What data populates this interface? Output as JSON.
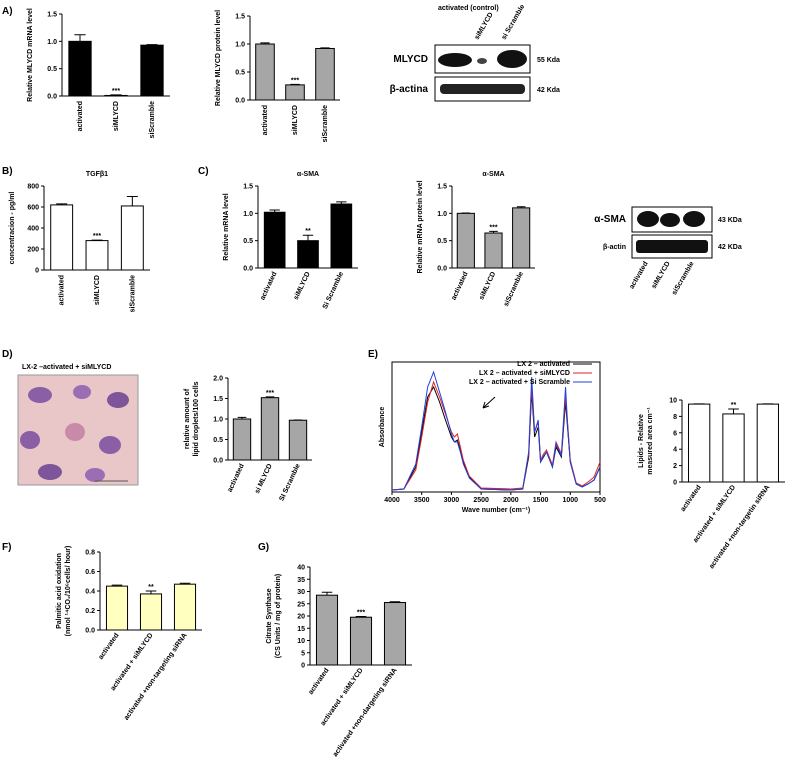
{
  "panel_labels": [
    "A)",
    "B)",
    "C)",
    "D)",
    "E)",
    "F)",
    "G)"
  ],
  "chart_data": [
    {
      "type": "bar",
      "ylabel": [
        "Relative MLYCD mRNA level"
      ],
      "categories": [
        "activated",
        "siMLYCD",
        "siScramble"
      ],
      "series": [
        {
          "color": "#000000",
          "values": [
            1.0,
            0.01,
            0.93
          ],
          "errors": [
            0.12,
            0.01,
            0.01
          ]
        }
      ],
      "significance": [
        null,
        "***",
        null
      ],
      "ylim": [
        0,
        1.5
      ],
      "yticks": [
        {
          "value": 0,
          "label": "0.0"
        },
        0.5,
        {
          "value": 1,
          "label": "1.0"
        },
        1.5
      ]
    },
    {
      "type": "bar",
      "ylabel": [
        "Relative MLYCD protein level"
      ],
      "categories": [
        "activated",
        "siMLYCD",
        "siScramble"
      ],
      "series": [
        {
          "color": "#a6a6a6",
          "values": [
            1.0,
            0.27,
            0.92
          ],
          "errors": [
            0.02,
            0.01,
            0.01
          ]
        }
      ],
      "significance": [
        null,
        "***",
        null
      ],
      "ylim": [
        0,
        1.5
      ],
      "yticks": [
        {
          "value": 0,
          "label": "0.0"
        },
        0.5,
        {
          "value": 1,
          "label": "1.0"
        },
        1.5
      ]
    },
    {
      "type": "bar",
      "title": "TGFβ1",
      "ylabel": [
        "concentracion - pg/ml"
      ],
      "categories": [
        "activated",
        "siMLYCD",
        "siScramble"
      ],
      "series": [
        {
          "color": "#ffffff",
          "values": [
            620,
            280,
            610
          ],
          "errors": [
            10,
            5,
            90
          ]
        }
      ],
      "significance": [
        null,
        "***",
        null
      ],
      "ylim": [
        0,
        800
      ],
      "yticks": [
        0,
        200,
        400,
        600,
        800
      ]
    },
    {
      "type": "bar",
      "title": "α-SMA",
      "ylabel": [
        "Relative mRNA level"
      ],
      "categories": [
        "activated",
        "siMLYCD",
        "Si Scramble"
      ],
      "series": [
        {
          "color": "#000000",
          "values": [
            1.02,
            0.5,
            1.17
          ],
          "errors": [
            0.04,
            0.1,
            0.04
          ]
        }
      ],
      "significance": [
        null,
        "**",
        null
      ],
      "ylim": [
        0,
        1.5
      ],
      "yticks": [
        {
          "value": 0,
          "label": "0.0"
        },
        0.5,
        {
          "value": 1,
          "label": "1.0"
        },
        1.5
      ]
    },
    {
      "type": "bar",
      "title": "α-SMA",
      "ylabel": [
        "Relative mRNA protein level"
      ],
      "categories": [
        "activated",
        "siMLYCD",
        "siScramble"
      ],
      "series": [
        {
          "color": "#a6a6a6",
          "values": [
            1.0,
            0.64,
            1.1
          ],
          "errors": [
            0.005,
            0.03,
            0.02
          ]
        }
      ],
      "significance": [
        null,
        "***",
        null
      ],
      "ylim": [
        0,
        1.5
      ],
      "yticks": [
        {
          "value": 0,
          "label": "0.0"
        },
        0.5,
        {
          "value": 1,
          "label": "1.0"
        },
        1.5
      ]
    },
    {
      "type": "bar",
      "ylabel": [
        "relative amount of",
        "lipid droplets/100 cells"
      ],
      "categories": [
        "activated",
        "si MLYCD",
        "SI Scramble"
      ],
      "series": [
        {
          "color": "#a6a6a6",
          "values": [
            1.0,
            1.52,
            0.97
          ],
          "errors": [
            0.04,
            0.02,
            0.005
          ]
        }
      ],
      "significance": [
        null,
        "***",
        null
      ],
      "ylim": [
        0,
        2
      ],
      "yticks": [
        {
          "value": 0,
          "label": "0.0"
        },
        0.5,
        {
          "value": 1,
          "label": "1.0"
        },
        1.5,
        {
          "value": 2,
          "label": "2.0"
        }
      ]
    },
    {
      "type": "line",
      "ylabel": [
        "Absorbance"
      ],
      "xlabel": "Wave number (cm⁻¹)",
      "x": [
        4000,
        3800,
        3600,
        3500,
        3400,
        3300,
        3200,
        3100,
        3000,
        2950,
        2900,
        2850,
        2800,
        2700,
        2500,
        2000,
        1800,
        1700,
        1650,
        1600,
        1540,
        1500,
        1450,
        1400,
        1300,
        1240,
        1150,
        1080,
        1040,
        1000,
        900,
        800,
        700,
        600,
        500
      ],
      "series": [
        {
          "name": "LX 2 – activated",
          "color": "#000000",
          "values": [
            0.02,
            0.03,
            0.25,
            0.6,
            0.95,
            1.05,
            0.9,
            0.72,
            0.55,
            0.5,
            0.52,
            0.42,
            0.3,
            0.15,
            0.03,
            0.02,
            0.03,
            0.35,
            1.0,
            0.55,
            0.65,
            0.3,
            0.35,
            0.4,
            0.25,
            0.45,
            0.35,
            0.9,
            0.6,
            0.3,
            0.08,
            0.05,
            0.08,
            0.12,
            0.25
          ]
        },
        {
          "name": "LX 2 – activated + siMLYCD",
          "color": "#e02020",
          "values": [
            0.02,
            0.03,
            0.22,
            0.55,
            0.9,
            1.1,
            0.95,
            0.78,
            0.6,
            0.55,
            0.58,
            0.45,
            0.32,
            0.16,
            0.04,
            0.03,
            0.04,
            0.38,
            1.05,
            0.6,
            0.7,
            0.32,
            0.38,
            0.42,
            0.27,
            0.5,
            0.38,
            0.95,
            0.65,
            0.32,
            0.09,
            0.06,
            0.1,
            0.15,
            0.3
          ]
        },
        {
          "name": "LX 2 – activated + Si Scramble",
          "color": "#2040e0",
          "values": [
            0.02,
            0.03,
            0.28,
            0.65,
            1.05,
            1.2,
            1.0,
            0.8,
            0.58,
            0.5,
            0.5,
            0.4,
            0.28,
            0.14,
            0.03,
            0.02,
            0.03,
            0.4,
            1.15,
            0.6,
            0.72,
            0.3,
            0.36,
            0.4,
            0.25,
            0.48,
            0.36,
            1.05,
            0.62,
            0.3,
            0.08,
            0.05,
            0.08,
            0.12,
            0.25
          ]
        }
      ],
      "xlim": [
        4000,
        500
      ],
      "xticks": [
        4000,
        3500,
        3000,
        2500,
        2000,
        1500,
        1000,
        500
      ],
      "ylim": [
        0,
        1.3
      ],
      "legend": "top-right"
    },
    {
      "type": "bar",
      "ylabel": [
        "Lipids - Relative",
        "measured area cm⁻¹"
      ],
      "categories": [
        "activated",
        "activated + siMLYCD",
        "activated +non-targetin siRNA"
      ],
      "series": [
        {
          "color": "#ffffff",
          "values": [
            9.5,
            8.3,
            9.5
          ],
          "errors": [
            0.02,
            0.6,
            0.02
          ]
        }
      ],
      "significance": [
        null,
        "**",
        null
      ],
      "ylim": [
        0,
        10
      ],
      "yticks": [
        0,
        2,
        4,
        6,
        8,
        10
      ]
    },
    {
      "type": "bar",
      "ylabel": [
        "Palmitic acid oxidation",
        "(nmol ¹⁴CO₂/10⁶cells/ hour)"
      ],
      "categories": [
        "activated",
        "activated + siMLYCD",
        "activated +non-targeting siRNA"
      ],
      "series": [
        {
          "color": "#ffffc0",
          "values": [
            0.45,
            0.37,
            0.47
          ],
          "errors": [
            0.01,
            0.03,
            0.01
          ]
        }
      ],
      "significance": [
        null,
        "**",
        null
      ],
      "ylim": [
        0,
        0.8
      ],
      "yticks": [
        {
          "value": 0,
          "label": "0.0"
        },
        0.2,
        0.4,
        0.6,
        0.8
      ]
    },
    {
      "type": "bar",
      "ylabel": [
        "Citrate Synthase",
        "(CS Units / mg of protein)"
      ],
      "categories": [
        "activated",
        "activated + siMLYCD",
        "activated +non-dargeting siRNA"
      ],
      "series": [
        {
          "color": "#a6a6a6",
          "values": [
            28.5,
            19.5,
            25.5
          ],
          "errors": [
            1.2,
            0.3,
            0.3
          ]
        }
      ],
      "significance": [
        null,
        "***",
        null
      ],
      "ylim": [
        0,
        40
      ],
      "yticks": [
        0,
        5,
        10,
        15,
        20,
        25,
        30,
        35,
        40
      ]
    }
  ],
  "blots": [
    {
      "lanes": [
        "activated (control)",
        "siMLYCD",
        "si Scramble"
      ],
      "bands": [
        "MLYCD",
        "β-actina"
      ],
      "sizes": [
        "55 Kda",
        "42 Kda"
      ]
    },
    {
      "lanes": [
        "activated",
        "siMLYCD",
        "siScramble"
      ],
      "bands": [
        "α-SMA",
        "β-actin"
      ],
      "sizes": [
        "43 KDa",
        "42 KDa"
      ]
    }
  ],
  "micrograph": {
    "title": "LX-2 –activated + siMLYCD"
  }
}
